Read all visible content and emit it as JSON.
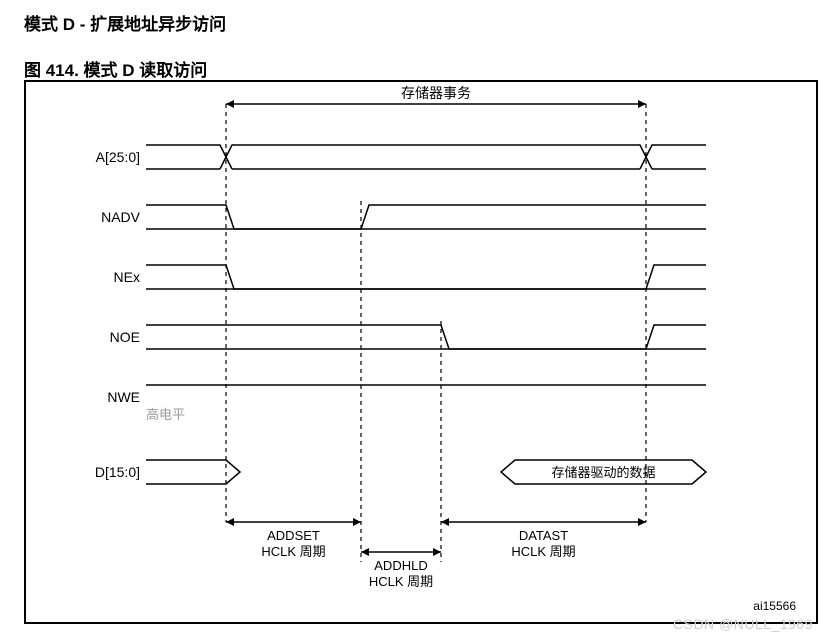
{
  "headline": "模式 D - 扩展地址异步访问",
  "figureLabel": "图 414.      模式 D 读取访问",
  "topLabel": "存储器事务",
  "signals": {
    "addr": "A[25:0]",
    "nadv": "NADV",
    "nex": "NEx",
    "noe": "NOE",
    "nwe": "NWE",
    "nwe_note": "高电平",
    "data": "D[15:0]"
  },
  "dataLabel": "存储器驱动的数据",
  "phases": {
    "addset": "ADDSET",
    "addset_sub": "HCLK 周期",
    "addhld": "ADDHLD",
    "addhld_sub": "HCLK 周期",
    "datast": "DATAST",
    "datast_sub": "HCLK 周期"
  },
  "refId": "ai15566",
  "watermark": "CSDN @NULL_1969",
  "style": {
    "stroke": "#000000",
    "strokeWidth": 1.5,
    "dashColor": "#000000",
    "labelFontSize": 14,
    "signalFontSize": 14,
    "noteFontSize": 13,
    "noteColor": "#9a9a9a",
    "arrowFontSize": 13,
    "xStart": 200,
    "xAddsetEnd": 335,
    "xAddhldEnd": 415,
    "xDatastEnd": 620,
    "xRight": 680
  }
}
